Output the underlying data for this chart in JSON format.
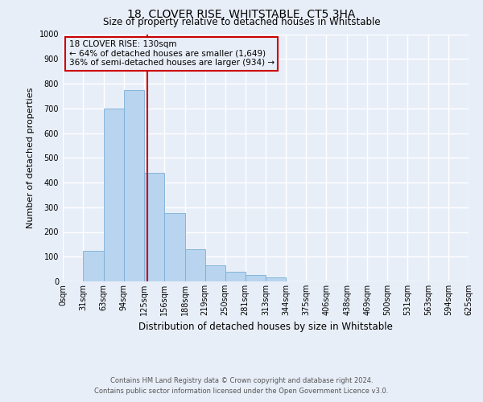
{
  "title": "18, CLOVER RISE, WHITSTABLE, CT5 3HA",
  "subtitle": "Size of property relative to detached houses in Whitstable",
  "xlabel": "Distribution of detached houses by size in Whitstable",
  "ylabel": "Number of detached properties",
  "bar_edges": [
    0,
    31,
    63,
    94,
    125,
    156,
    188,
    219,
    250,
    281,
    313,
    344,
    375,
    406,
    438,
    469,
    500,
    531,
    563,
    594,
    625
  ],
  "bar_heights": [
    0,
    125,
    700,
    775,
    440,
    275,
    130,
    65,
    40,
    25,
    15,
    0,
    0,
    0,
    0,
    0,
    0,
    0,
    0,
    0
  ],
  "bar_color": "#b8d4ee",
  "bar_edgecolor": "#7aaed6",
  "property_size": 130,
  "vline_color": "#cc0000",
  "ylim": [
    0,
    1000
  ],
  "xlim": [
    0,
    625
  ],
  "annotation_text_line1": "18 CLOVER RISE: 130sqm",
  "annotation_text_line2": "← 64% of detached houses are smaller (1,649)",
  "annotation_text_line3": "36% of semi-detached houses are larger (934) →",
  "annotation_box_color": "#cc0000",
  "footnote1": "Contains HM Land Registry data © Crown copyright and database right 2024.",
  "footnote2": "Contains public sector information licensed under the Open Government Licence v3.0.",
  "background_color": "#e8eef8",
  "grid_color": "#ffffff",
  "tick_labels": [
    "0sqm",
    "31sqm",
    "63sqm",
    "94sqm",
    "125sqm",
    "156sqm",
    "188sqm",
    "219sqm",
    "250sqm",
    "281sqm",
    "313sqm",
    "344sqm",
    "375sqm",
    "406sqm",
    "438sqm",
    "469sqm",
    "500sqm",
    "531sqm",
    "563sqm",
    "594sqm",
    "625sqm"
  ],
  "title_fontsize": 10,
  "subtitle_fontsize": 8.5,
  "ylabel_fontsize": 8,
  "xlabel_fontsize": 8.5,
  "tick_fontsize": 7,
  "footnote_fontsize": 6
}
